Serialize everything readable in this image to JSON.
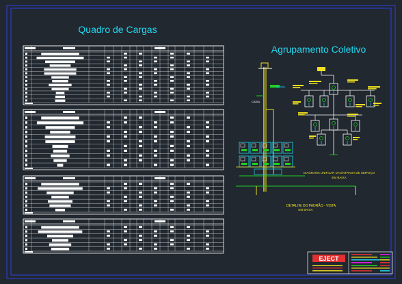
{
  "colors": {
    "background": "#212830",
    "border": "#2f3fe0",
    "cyan": "#22d8f0",
    "white": "#ffffff",
    "yellow": "#f0e020",
    "green": "#20d020",
    "red": "#e03030",
    "magenta": "#e020e0"
  },
  "titles": {
    "left": "Quadro de Cargas",
    "right": "Agrupamento Coletivo"
  },
  "labels": {
    "diagram_caption_line1": "DIAGRAMA UNIFILAR DA ENTRADA DE SERVIÇO",
    "diagram_caption_line2": "EM BAIXA",
    "detail_caption_line1": "DETALHE DO PADRÃO - VISTA",
    "detail_caption_line2": "EM BAIXA",
    "title_block_logo": "EJECT"
  },
  "tables": [
    {
      "id": "load-table-1",
      "rows": 13
    },
    {
      "id": "load-table-2",
      "rows": 11
    },
    {
      "id": "load-table-3",
      "rows": 7
    },
    {
      "id": "load-table-4",
      "rows": 6
    }
  ]
}
